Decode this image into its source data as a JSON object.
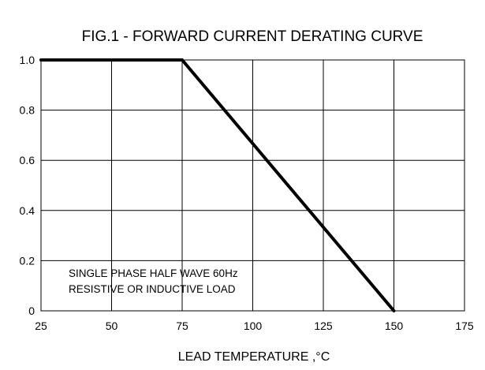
{
  "chart_data": {
    "type": "line",
    "title": "FIG.1 - FORWARD CURRENT DERATING CURVE",
    "xlabel": "LEAD TEMPERATURE ,°C",
    "ylabel": "",
    "xlim": [
      25,
      175
    ],
    "ylim": [
      0,
      1.0
    ],
    "x_ticks": [
      25,
      50,
      75,
      100,
      125,
      150,
      175
    ],
    "x_tick_labels": [
      "25",
      "50",
      "75",
      "100",
      "125",
      "150",
      "175"
    ],
    "y_ticks": [
      0,
      0.2,
      0.4,
      0.6,
      0.8,
      1.0
    ],
    "y_tick_labels": [
      "0",
      "0.2",
      "0.4",
      "0.6",
      "0.8",
      "1.0"
    ],
    "grid": true,
    "series": [
      {
        "x": [
          25,
          75,
          150
        ],
        "y": [
          1.0,
          1.0,
          0
        ],
        "color": "#000000"
      }
    ],
    "annotations": [
      "SINGLE PHASE HALF WAVE 60Hz",
      "RESISTIVE OR INDUCTIVE LOAD"
    ]
  }
}
